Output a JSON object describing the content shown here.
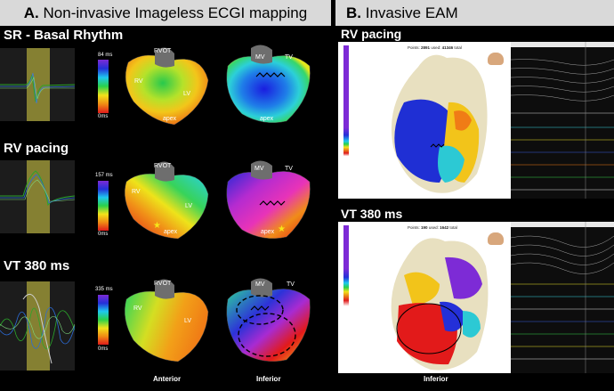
{
  "panel_a": {
    "label": "A.",
    "title": "Non-invasive Imageless ECGI mapping",
    "rows": [
      {
        "title": "SR - Basal Rhythm",
        "scale_max": "84 ms",
        "scale_min": "0ms"
      },
      {
        "title": "RV pacing",
        "scale_max": "157 ms",
        "scale_min": "0ms"
      },
      {
        "title": "VT 380 ms",
        "scale_max": "335 ms",
        "scale_min": "0ms"
      }
    ],
    "anatomy": {
      "rvot": "RVOT",
      "rv": "RV",
      "lv": "LV",
      "apex": "apex",
      "mv": "MV",
      "tv": "TV"
    },
    "view_labels": {
      "anterior": "Anterior",
      "inferior": "Inferior"
    }
  },
  "panel_b": {
    "label": "B.",
    "title": "Invasive EAM",
    "views": [
      {
        "title": "RV pacing",
        "points_label": "Points:",
        "points": "2891",
        "used_label": "used:",
        "used": "41346",
        "total_label": "total"
      },
      {
        "title": "VT 380 ms",
        "points_label": "Points:",
        "points": "190",
        "used_label": "used:",
        "used": "1642",
        "total_label": "total"
      }
    ],
    "view_label": "Inferior"
  },
  "colors": {
    "header_bg": "#d9d9d9",
    "background": "#000000",
    "window_yellow": "#a8a23a"
  }
}
